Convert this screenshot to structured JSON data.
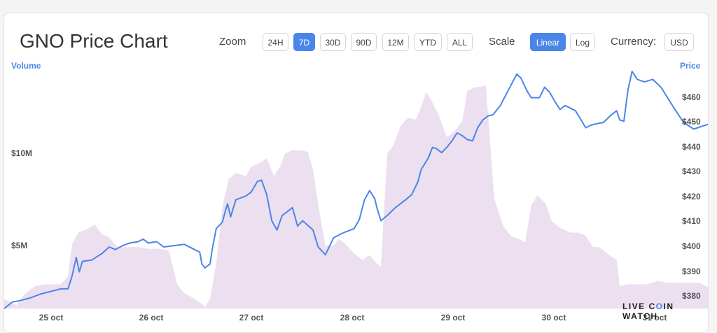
{
  "header": {
    "title": "GNO Price Chart",
    "zoom_label": "Zoom",
    "zoom_options": [
      "24H",
      "7D",
      "30D",
      "90D",
      "12M",
      "YTD",
      "ALL"
    ],
    "zoom_selected": "7D",
    "scale_label": "Scale",
    "scale_options": [
      "Linear",
      "Log"
    ],
    "scale_selected": "Linear",
    "currency_label": "Currency:",
    "currency_value": "USD"
  },
  "watermark": "LIVE COIN WATCH",
  "colors": {
    "price_line": "#4a86e8",
    "volume_fill": "#ecdff0",
    "accent": "#4a86e8"
  },
  "chart_data": {
    "type": "line",
    "left_axis_title": "Volume",
    "right_axis_title": "Price",
    "volume_tick_labels": [
      "$5M",
      "$10M"
    ],
    "price_tick_labels": [
      "$380",
      "$390",
      "$400",
      "$410",
      "$420",
      "$430",
      "$440",
      "$450",
      "$460"
    ],
    "x_tick_labels": [
      "25 oct",
      "26 oct",
      "27 oct",
      "28 oct",
      "29 oct",
      "30 oct",
      "31 oct"
    ],
    "price_ylim": [
      377,
      467
    ],
    "volume_ylim": [
      0,
      14600000
    ],
    "x_range_days": [
      24.6,
      31.45
    ],
    "series": [
      {
        "name": "Price",
        "axis": "right",
        "points": [
          [
            24.6,
            377
          ],
          [
            24.68,
            379.5
          ],
          [
            24.75,
            380
          ],
          [
            24.85,
            381
          ],
          [
            24.95,
            382.5
          ],
          [
            25.05,
            383.5
          ],
          [
            25.15,
            384.5
          ],
          [
            25.22,
            384.5
          ],
          [
            25.26,
            389.5
          ],
          [
            25.3,
            396.5
          ],
          [
            25.33,
            391
          ],
          [
            25.36,
            395
          ],
          [
            25.45,
            395.5
          ],
          [
            25.55,
            398
          ],
          [
            25.62,
            400.5
          ],
          [
            25.68,
            399.5
          ],
          [
            25.75,
            401
          ],
          [
            25.82,
            402
          ],
          [
            25.9,
            402.5
          ],
          [
            25.95,
            403.5
          ],
          [
            26.0,
            402
          ],
          [
            26.08,
            402.5
          ],
          [
            26.15,
            400.5
          ],
          [
            26.25,
            401
          ],
          [
            26.35,
            401.5
          ],
          [
            26.45,
            399.5
          ],
          [
            26.5,
            398.5
          ],
          [
            26.52,
            394
          ],
          [
            26.55,
            392.5
          ],
          [
            26.6,
            394
          ],
          [
            26.62,
            399.5
          ],
          [
            26.66,
            407.5
          ],
          [
            26.72,
            410
          ],
          [
            26.75,
            414.5
          ],
          [
            26.77,
            417
          ],
          [
            26.8,
            412
          ],
          [
            26.85,
            418.5
          ],
          [
            26.95,
            420
          ],
          [
            27.0,
            421.5
          ],
          [
            27.06,
            425.5
          ],
          [
            27.1,
            426
          ],
          [
            27.15,
            420.5
          ],
          [
            27.2,
            410.5
          ],
          [
            27.25,
            407
          ],
          [
            27.3,
            412.5
          ],
          [
            27.35,
            414
          ],
          [
            27.4,
            415.5
          ],
          [
            27.45,
            408.5
          ],
          [
            27.5,
            410.5
          ],
          [
            27.6,
            407
          ],
          [
            27.65,
            400.5
          ],
          [
            27.72,
            397.5
          ],
          [
            27.8,
            404
          ],
          [
            27.9,
            406
          ],
          [
            28.0,
            407.5
          ],
          [
            28.05,
            411
          ],
          [
            28.1,
            418.5
          ],
          [
            28.15,
            422
          ],
          [
            28.2,
            419
          ],
          [
            28.22,
            415.5
          ],
          [
            28.26,
            410.5
          ],
          [
            28.32,
            412.5
          ],
          [
            28.4,
            415.5
          ],
          [
            28.5,
            418.5
          ],
          [
            28.56,
            420.5
          ],
          [
            28.62,
            425.5
          ],
          [
            28.65,
            430
          ],
          [
            28.72,
            434.5
          ],
          [
            28.76,
            438.5
          ],
          [
            28.8,
            438
          ],
          [
            28.85,
            436.5
          ],
          [
            28.9,
            438.5
          ],
          [
            28.95,
            441
          ],
          [
            29.0,
            444
          ],
          [
            29.05,
            443
          ],
          [
            29.1,
            441.5
          ],
          [
            29.15,
            441
          ],
          [
            29.2,
            446
          ],
          [
            29.25,
            449
          ],
          [
            29.3,
            450.5
          ],
          [
            29.35,
            451
          ],
          [
            29.42,
            454.5
          ],
          [
            29.5,
            460.5
          ],
          [
            29.58,
            466.5
          ],
          [
            29.62,
            465
          ],
          [
            29.68,
            460
          ],
          [
            29.72,
            457.5
          ],
          [
            29.8,
            457.5
          ],
          [
            29.85,
            461.5
          ],
          [
            29.9,
            459.5
          ],
          [
            29.95,
            456
          ],
          [
            30.0,
            453
          ],
          [
            30.05,
            454.5
          ],
          [
            30.15,
            452.5
          ],
          [
            30.25,
            446
          ],
          [
            30.3,
            447
          ],
          [
            30.35,
            447.5
          ],
          [
            30.42,
            448
          ],
          [
            30.5,
            451
          ],
          [
            30.55,
            452.5
          ],
          [
            30.58,
            449
          ],
          [
            30.62,
            448.5
          ],
          [
            30.66,
            460.5
          ],
          [
            30.7,
            467.5
          ],
          [
            30.75,
            464.5
          ],
          [
            30.82,
            463.5
          ],
          [
            30.9,
            464.5
          ],
          [
            30.98,
            461.5
          ],
          [
            31.02,
            459
          ],
          [
            31.1,
            454
          ],
          [
            31.2,
            448
          ],
          [
            31.3,
            445.5
          ],
          [
            31.45,
            447.5
          ]
        ]
      },
      {
        "name": "Volume",
        "axis": "left",
        "points": [
          [
            24.6,
            600000
          ],
          [
            24.72,
            200000
          ],
          [
            24.8,
            900000
          ],
          [
            24.9,
            1400000
          ],
          [
            25.0,
            1500000
          ],
          [
            25.15,
            1500000
          ],
          [
            25.22,
            2000000
          ],
          [
            25.26,
            4000000
          ],
          [
            25.32,
            4700000
          ],
          [
            25.4,
            4900000
          ],
          [
            25.48,
            5200000
          ],
          [
            25.55,
            4600000
          ],
          [
            25.62,
            4400000
          ],
          [
            25.7,
            3800000
          ],
          [
            25.8,
            3800000
          ],
          [
            25.9,
            3800000
          ],
          [
            26.0,
            3700000
          ],
          [
            26.1,
            3700000
          ],
          [
            26.2,
            3600000
          ],
          [
            26.28,
            1500000
          ],
          [
            26.34,
            1000000
          ],
          [
            26.42,
            700000
          ],
          [
            26.5,
            400000
          ],
          [
            26.55,
            100000
          ],
          [
            26.6,
            600000
          ],
          [
            26.66,
            2800000
          ],
          [
            26.72,
            6300000
          ],
          [
            26.78,
            8000000
          ],
          [
            26.85,
            8400000
          ],
          [
            26.95,
            8200000
          ],
          [
            27.0,
            8800000
          ],
          [
            27.08,
            9000000
          ],
          [
            27.15,
            9300000
          ],
          [
            27.22,
            8200000
          ],
          [
            27.28,
            8800000
          ],
          [
            27.33,
            9600000
          ],
          [
            27.4,
            9800000
          ],
          [
            27.48,
            9800000
          ],
          [
            27.55,
            9700000
          ],
          [
            27.6,
            8600000
          ],
          [
            27.66,
            6100000
          ],
          [
            27.72,
            3900000
          ],
          [
            27.8,
            3900000
          ],
          [
            27.85,
            4300000
          ],
          [
            27.9,
            4100000
          ],
          [
            28.0,
            3400000
          ],
          [
            28.08,
            3000000
          ],
          [
            28.15,
            3300000
          ],
          [
            28.22,
            2800000
          ],
          [
            28.26,
            2600000
          ],
          [
            28.32,
            9600000
          ],
          [
            28.38,
            10100000
          ],
          [
            28.45,
            11300000
          ],
          [
            28.52,
            11800000
          ],
          [
            28.6,
            11700000
          ],
          [
            28.65,
            12500000
          ],
          [
            28.7,
            13400000
          ],
          [
            28.75,
            12900000
          ],
          [
            28.82,
            12000000
          ],
          [
            28.9,
            10600000
          ],
          [
            28.98,
            11000000
          ],
          [
            29.05,
            11600000
          ],
          [
            29.1,
            13500000
          ],
          [
            29.18,
            13700000
          ],
          [
            29.28,
            13800000
          ],
          [
            29.36,
            6800000
          ],
          [
            29.45,
            5100000
          ],
          [
            29.52,
            4500000
          ],
          [
            29.6,
            4300000
          ],
          [
            29.66,
            4100000
          ],
          [
            29.72,
            6400000
          ],
          [
            29.78,
            7000000
          ],
          [
            29.86,
            6500000
          ],
          [
            29.92,
            5400000
          ],
          [
            30.0,
            5000000
          ],
          [
            30.1,
            4700000
          ],
          [
            30.18,
            4700000
          ],
          [
            30.25,
            4500000
          ],
          [
            30.32,
            3800000
          ],
          [
            30.38,
            3800000
          ],
          [
            30.42,
            3600000
          ],
          [
            30.48,
            3300000
          ],
          [
            30.55,
            3000000
          ],
          [
            30.58,
            1400000
          ],
          [
            30.65,
            1500000
          ],
          [
            30.75,
            1500000
          ],
          [
            30.85,
            1500000
          ],
          [
            30.95,
            1700000
          ],
          [
            31.05,
            1600000
          ],
          [
            31.2,
            1600000
          ],
          [
            31.35,
            1600000
          ],
          [
            31.45,
            1300000
          ]
        ]
      }
    ],
    "grid": false,
    "legend": "none"
  }
}
